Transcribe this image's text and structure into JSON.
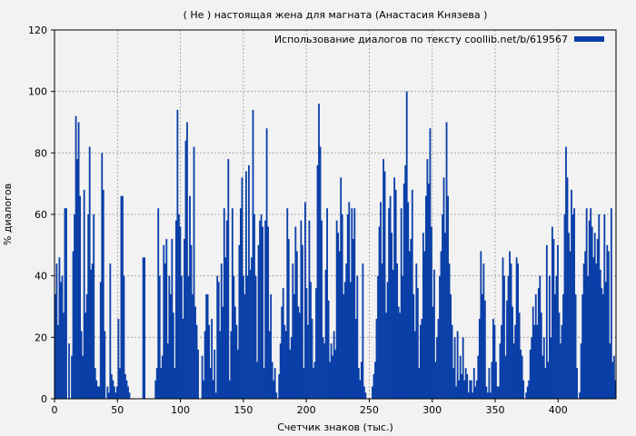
{
  "chart_data": {
    "type": "bar",
    "title": "( Не ) настоящая жена для магната (Анастасия Князева )",
    "xlabel": "Счетчик знаков (тыс.)",
    "ylabel": "% диалогов",
    "xlim": [
      0,
      446
    ],
    "ylim": [
      0,
      120
    ],
    "xticks": [
      0,
      50,
      100,
      150,
      200,
      250,
      300,
      350,
      400
    ],
    "yticks": [
      0,
      20,
      40,
      60,
      80,
      100,
      120
    ],
    "grid": true,
    "legend_position": "top-right",
    "series": [
      {
        "name": "Использование диалогов по тексту coollib.net/b/619567",
        "color": "#0a3fa8",
        "values": [
          34,
          44,
          24,
          46,
          38,
          40,
          28,
          62,
          62,
          0,
          18,
          0,
          14,
          48,
          60,
          92,
          78,
          90,
          66,
          22,
          14,
          68,
          28,
          34,
          60,
          82,
          42,
          44,
          60,
          10,
          6,
          4,
          4,
          38,
          80,
          68,
          22,
          0,
          4,
          2,
          44,
          8,
          6,
          4,
          2,
          4,
          26,
          10,
          66,
          66,
          40,
          8,
          6,
          4,
          2,
          0,
          0,
          0,
          0,
          0,
          0,
          0,
          0,
          0,
          46,
          46,
          0,
          0,
          0,
          0,
          0,
          0,
          0,
          6,
          10,
          62,
          40,
          10,
          14,
          50,
          44,
          52,
          18,
          40,
          34,
          52,
          28,
          10,
          58,
          94,
          60,
          56,
          40,
          26,
          52,
          84,
          90,
          40,
          66,
          50,
          34,
          82,
          30,
          24,
          16,
          0,
          0,
          14,
          6,
          22,
          34,
          34,
          24,
          10,
          26,
          6,
          16,
          2,
          40,
          38,
          22,
          44,
          30,
          62,
          46,
          58,
          78,
          6,
          22,
          62,
          40,
          30,
          24,
          16,
          50,
          62,
          72,
          40,
          34,
          74,
          40,
          76,
          42,
          46,
          94,
          60,
          40,
          12,
          50,
          58,
          60,
          56,
          10,
          58,
          88,
          56,
          22,
          34,
          12,
          6,
          10,
          2,
          0,
          8,
          18,
          30,
          36,
          24,
          22,
          62,
          52,
          16,
          20,
          44,
          34,
          56,
          48,
          30,
          28,
          58,
          50,
          10,
          64,
          36,
          24,
          58,
          38,
          26,
          10,
          12,
          36,
          76,
          96,
          82,
          58,
          20,
          18,
          42,
          62,
          32,
          12,
          18,
          14,
          22,
          16,
          58,
          54,
          48,
          72,
          60,
          34,
          38,
          44,
          60,
          64,
          38,
          62,
          52,
          62,
          26,
          40,
          10,
          6,
          12,
          44,
          4,
          2,
          0,
          0,
          0,
          0,
          4,
          8,
          12,
          26,
          40,
          56,
          64,
          44,
          78,
          74,
          28,
          38,
          62,
          66,
          54,
          42,
          72,
          68,
          44,
          30,
          28,
          62,
          40,
          70,
          76,
          100,
          64,
          48,
          52,
          68,
          34,
          22,
          44,
          36,
          10,
          24,
          26,
          54,
          48,
          66,
          78,
          70,
          88,
          56,
          30,
          42,
          12,
          20,
          26,
          40,
          48,
          60,
          72,
          54,
          90,
          66,
          44,
          34,
          24,
          10,
          20,
          4,
          22,
          6,
          14,
          8,
          20,
          6,
          10,
          8,
          2,
          6,
          6,
          2,
          10,
          4,
          6,
          14,
          26,
          48,
          34,
          44,
          32,
          4,
          2,
          10,
          2,
          12,
          26,
          24,
          12,
          4,
          4,
          18,
          24,
          46,
          40,
          14,
          32,
          40,
          48,
          44,
          30,
          18,
          24,
          46,
          44,
          28,
          16,
          14,
          6,
          0,
          2,
          4,
          6,
          16,
          20,
          30,
          24,
          34,
          24,
          36,
          40,
          28,
          14,
          20,
          10,
          50,
          12,
          40,
          20,
          56,
          52,
          34,
          40,
          50,
          28,
          18,
          24,
          34,
          60,
          82,
          72,
          54,
          48,
          68,
          60,
          62,
          34,
          10,
          0,
          2,
          18,
          34,
          44,
          48,
          62,
          40,
          58,
          62,
          56,
          46,
          54,
          44,
          52,
          60,
          42,
          36,
          34,
          60,
          38,
          50,
          48,
          18,
          62,
          12,
          14,
          6
        ]
      }
    ]
  }
}
